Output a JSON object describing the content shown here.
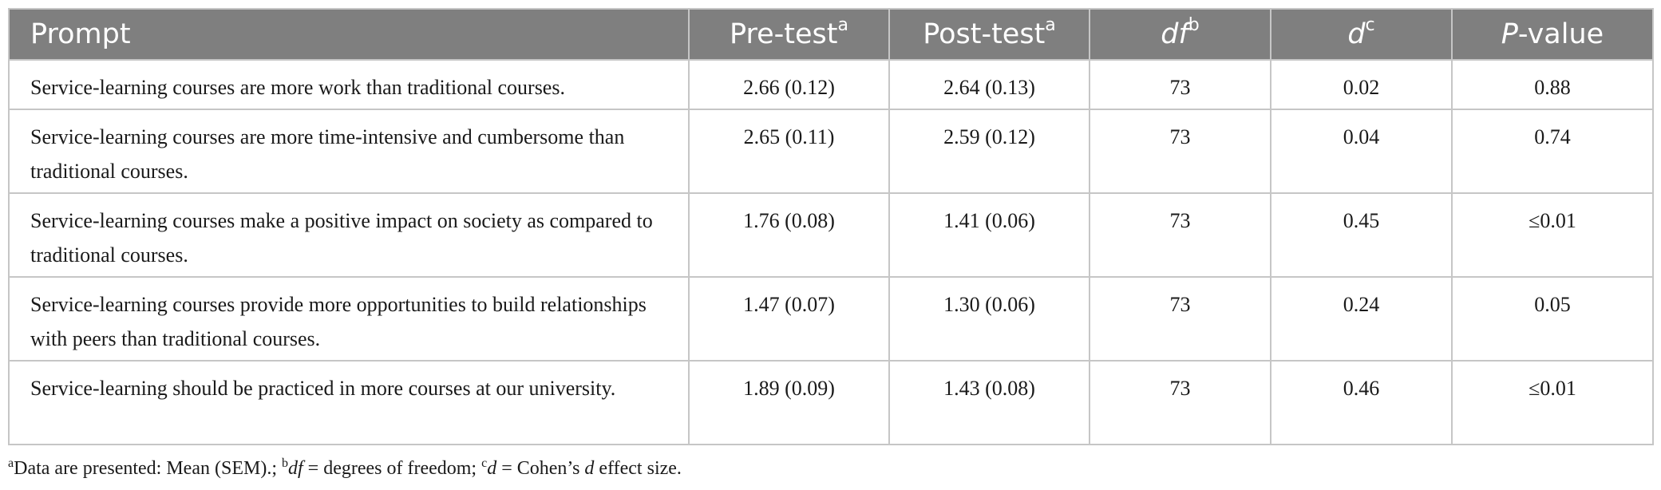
{
  "header": {
    "prompt": "Prompt",
    "pretest": "Pre-test",
    "pretest_sup": "a",
    "posttest": "Post-test",
    "posttest_sup": "a",
    "df": "df",
    "df_sup": "b",
    "d": "d",
    "d_sup": "c",
    "p_italic": "P",
    "p_rest": "-value"
  },
  "rows": [
    {
      "prompt": "Service-learning courses are more work than traditional courses.",
      "pre": "2.66 (0.12)",
      "post": "2.64 (0.13)",
      "df": "73",
      "d": "0.02",
      "p": "0.88"
    },
    {
      "prompt": "Service-learning courses are more time-intensive and cumbersome than traditional courses.",
      "pre": "2.65 (0.11)",
      "post": "2.59 (0.12)",
      "df": "73",
      "d": "0.04",
      "p": "0.74"
    },
    {
      "prompt": "Service-learning courses make a positive impact on society as compared to traditional courses.",
      "pre": "1.76 (0.08)",
      "post": "1.41 (0.06)",
      "df": "73",
      "d": "0.45",
      "p": "≤0.01"
    },
    {
      "prompt": "Service-learning courses provide more opportunities to build relationships with peers than traditional courses.",
      "pre": "1.47 (0.07)",
      "post": "1.30 (0.06)",
      "df": "73",
      "d": "0.24",
      "p": "0.05"
    },
    {
      "prompt": "Service-learning should be practiced in more courses at our university.",
      "pre": "1.89 (0.09)",
      "post": "1.43 (0.08)",
      "df": "73",
      "d": "0.46",
      "p": "≤0.01"
    }
  ],
  "footnote": {
    "a_sup": "a",
    "a_text": "Data are presented: Mean (SEM).; ",
    "b_sup": "b",
    "b_term": "df",
    "b_text": " = degrees of freedom; ",
    "c_sup": "c",
    "c_term": "d",
    "c_text": " = Cohen’s ",
    "c_term2": "d",
    "c_text2": " effect size."
  }
}
